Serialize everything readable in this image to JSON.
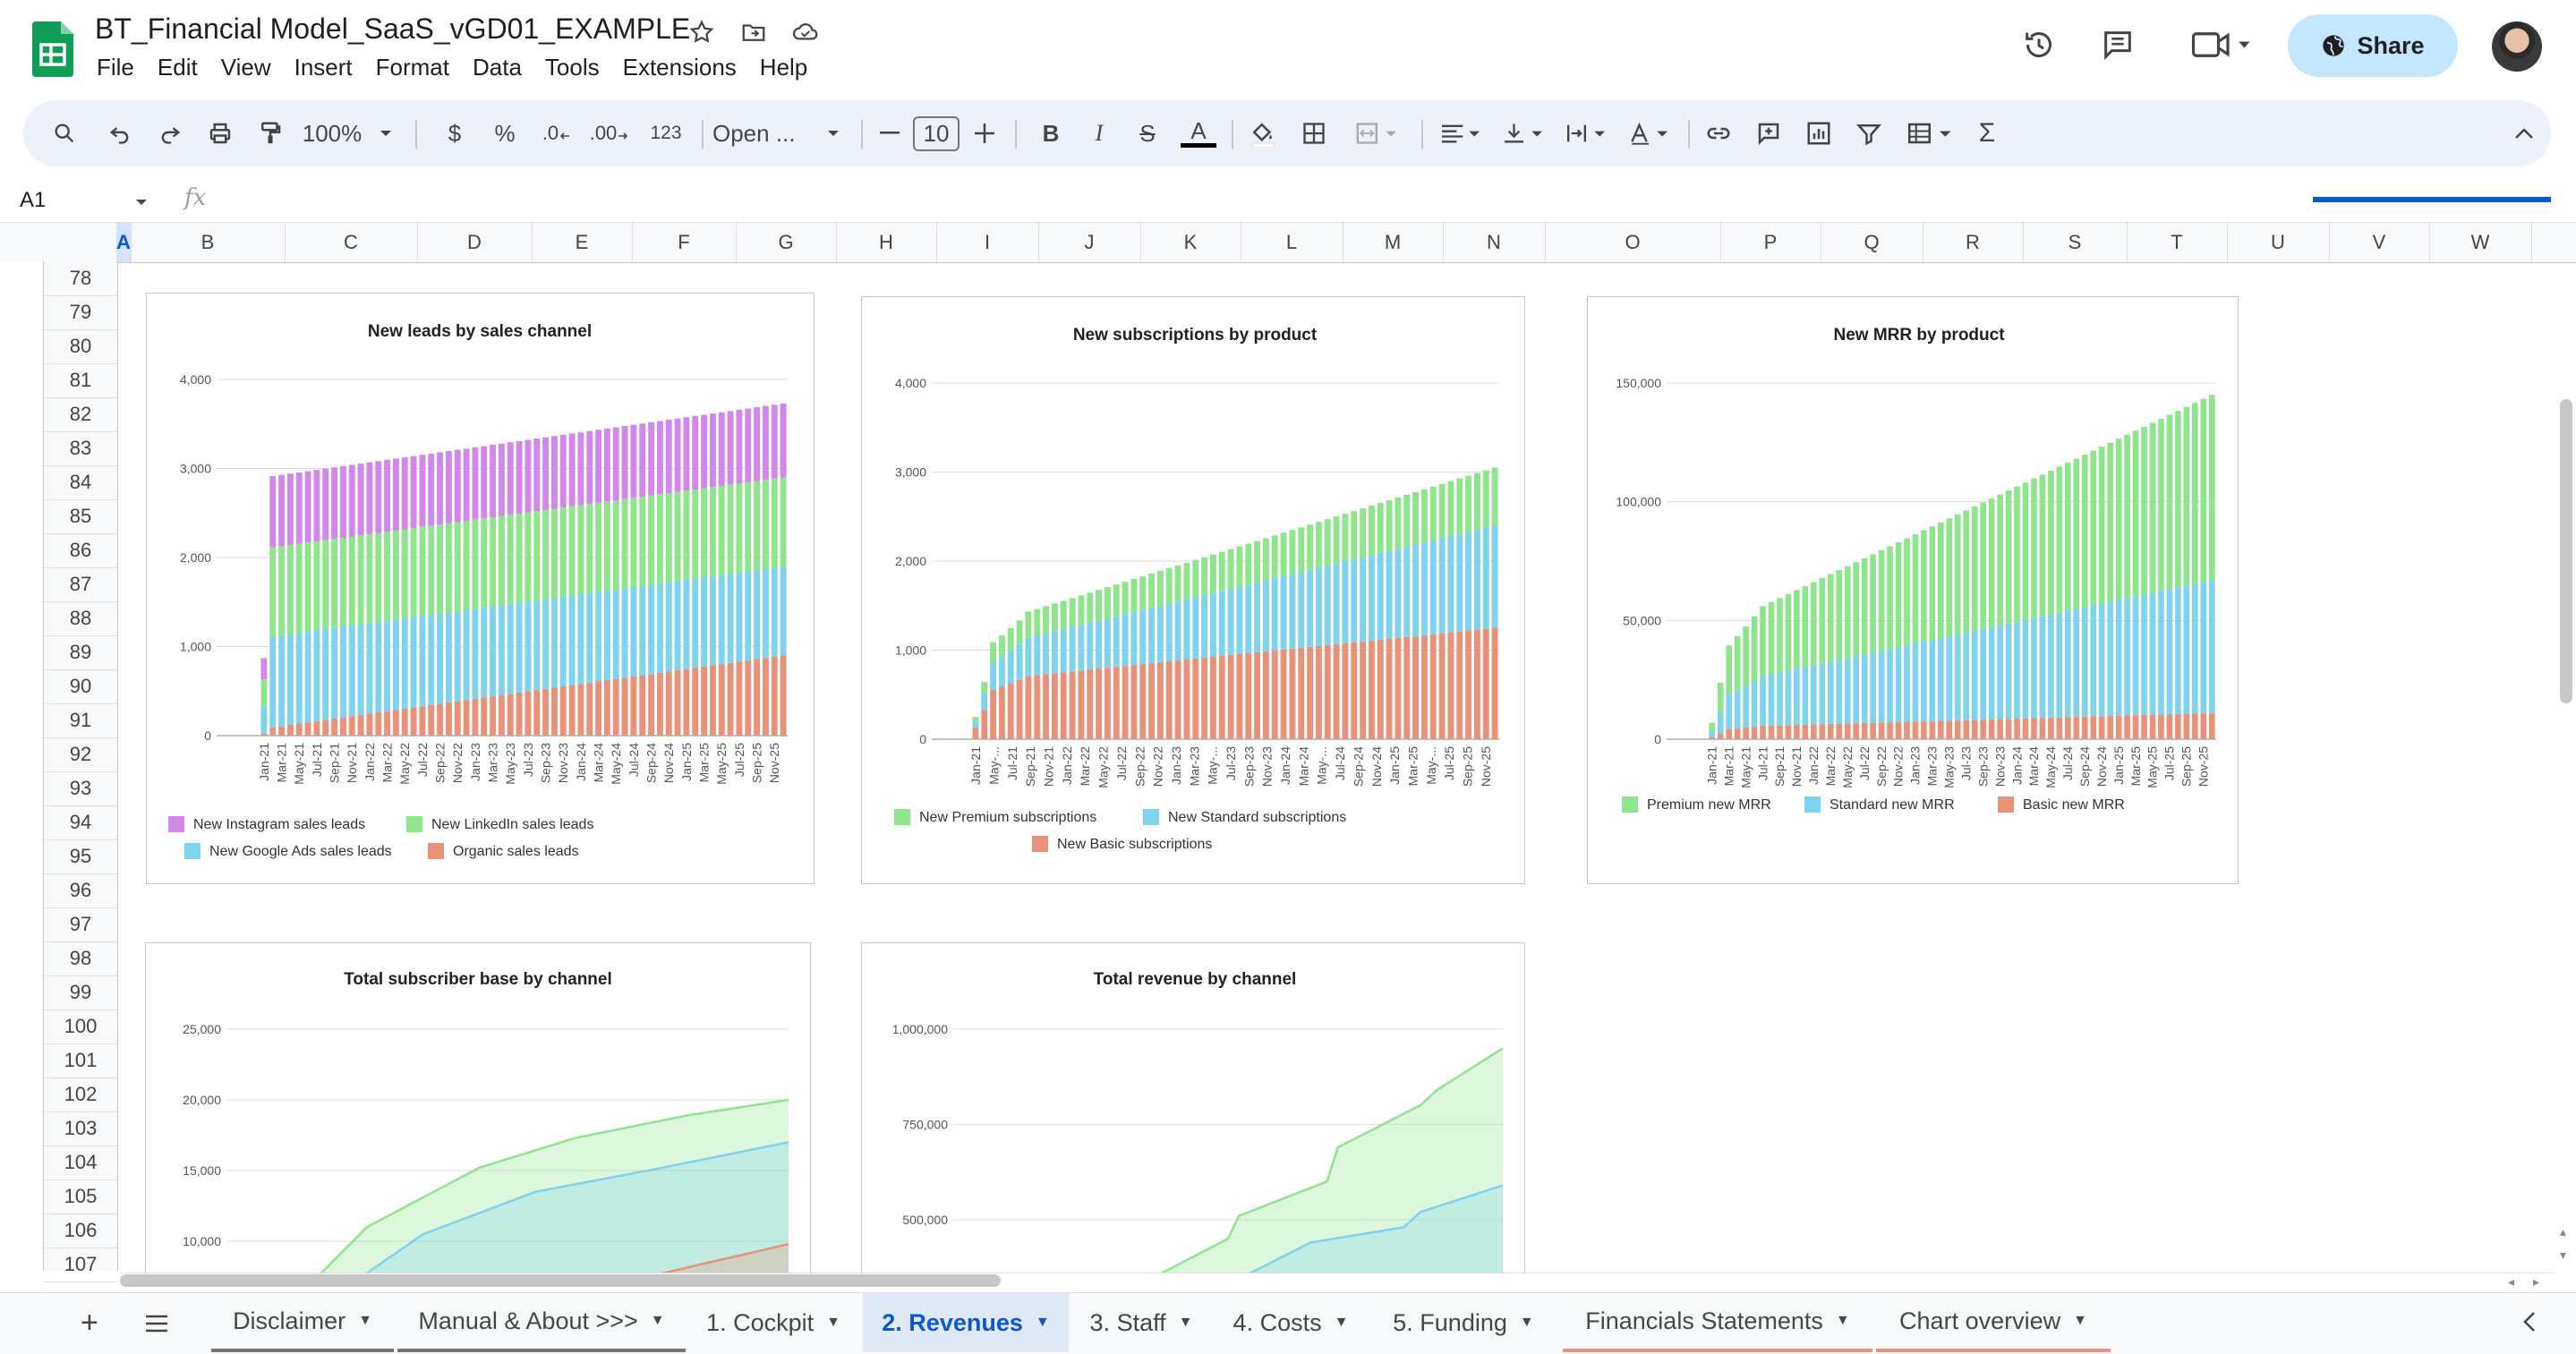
{
  "app": {
    "doc_title": "BT_Financial Model_SaaS_vGD01_EXAMPLE",
    "menu": [
      "File",
      "Edit",
      "View",
      "Insert",
      "Format",
      "Data",
      "Tools",
      "Extensions",
      "Help"
    ],
    "share_label": "Share"
  },
  "toolbar": {
    "zoom": "100%",
    "currency": "$",
    "percent": "%",
    "dec_dec": ".0",
    "inc_dec": ".00",
    "number_format": "123",
    "font": "Open ...",
    "font_size": "10",
    "bold": "B",
    "italic": "I",
    "strike": "S",
    "text_color": "A",
    "sum": "Σ"
  },
  "formula_bar": {
    "cell_ref": "A1",
    "fx": "fx"
  },
  "columns": [
    "A",
    "B",
    "C",
    "D",
    "E",
    "F",
    "G",
    "H",
    "I",
    "J",
    "K",
    "L",
    "M",
    "N",
    "O",
    "P",
    "Q",
    "R",
    "S",
    "T",
    "U",
    "V",
    "W"
  ],
  "rows": [
    "78",
    "79",
    "80",
    "81",
    "82",
    "83",
    "84",
    "85",
    "86",
    "87",
    "88",
    "89",
    "90",
    "91",
    "92",
    "93",
    "94",
    "95",
    "96",
    "97",
    "98",
    "99",
    "100",
    "101",
    "102",
    "103",
    "104",
    "105",
    "106",
    "107"
  ],
  "chart_data": [
    {
      "type": "bar",
      "stacked": true,
      "title": "New leads by sales channel",
      "x_labels": [
        "Jan-21",
        "Mar-21",
        "May-21",
        "Jul-21",
        "Sep-21",
        "Nov-21",
        "Jan-22",
        "Mar-22",
        "May-22",
        "Jul-22",
        "Sep-22",
        "Nov-22",
        "Jan-23",
        "Mar-23",
        "May-23",
        "Jul-23",
        "Sep-23",
        "Nov-23",
        "Jan-24",
        "Mar-24",
        "May-24",
        "Jul-24",
        "Sep-24",
        "Nov-24",
        "Jan-25",
        "Mar-25",
        "May-25",
        "Jul-25",
        "Sep-25",
        "Nov-25"
      ],
      "ylim": [
        0,
        4000
      ],
      "yticks": [
        "0",
        "1,000",
        "2,000",
        "3,000",
        "4,000"
      ],
      "series": [
        {
          "name": "Organic sales leads",
          "color": "#e8927a",
          "start": 80,
          "end": 900
        },
        {
          "name": "New Google Ads sales leads",
          "color": "#7fd3ee",
          "start": 1020,
          "end": 1000
        },
        {
          "name": "New LinkedIn sales leads",
          "color": "#8fe58c",
          "start": 1000,
          "end": 1000
        },
        {
          "name": "New Instagram sales leads",
          "color": "#d487ea",
          "start": 800,
          "end": 830
        }
      ],
      "legend": [
        "New Instagram sales leads",
        "New LinkedIn sales leads",
        "New Google Ads sales leads",
        "Organic sales leads"
      ]
    },
    {
      "type": "bar",
      "stacked": true,
      "title": "New subscriptions by product",
      "x_labels": [
        "Jan-21",
        "May-...",
        "Jul-21",
        "Sep-21",
        "Nov-21",
        "Jan-22",
        "Mar-22",
        "May-22",
        "Jul-22",
        "Sep-22",
        "Nov-22",
        "Jan-23",
        "Mar-23",
        "May-...",
        "Jul-23",
        "Sep-23",
        "Nov-23",
        "Jan-24",
        "Mar-24",
        "May-...",
        "Jul-24",
        "Sep-24",
        "Nov-24",
        "Jan-25",
        "Mar-25",
        "May-...",
        "Jul-25",
        "Sep-25",
        "Nov-25"
      ],
      "ylim": [
        0,
        4000
      ],
      "yticks": [
        "0",
        "1,000",
        "2,000",
        "3,000",
        "4,000"
      ],
      "series": [
        {
          "name": "New Basic subscriptions",
          "color": "#e8927a",
          "start": 650,
          "end": 1250
        },
        {
          "name": "New Standard subscriptions",
          "color": "#7fd3ee",
          "start": 350,
          "end": 1150
        },
        {
          "name": "New Premium subscriptions",
          "color": "#8fe58c",
          "start": 250,
          "end": 650
        }
      ],
      "legend": [
        "New Premium subscriptions",
        "New Standard subscriptions",
        "New Basic subscriptions"
      ]
    },
    {
      "type": "bar",
      "stacked": true,
      "title": "New MRR by product",
      "x_labels": [
        "Jan-21",
        "Mar-21",
        "May-21",
        "Jul-21",
        "Sep-21",
        "Nov-21",
        "Jan-22",
        "Mar-22",
        "May-22",
        "Jul-22",
        "Sep-22",
        "Nov-22",
        "Jan-23",
        "Mar-23",
        "May-23",
        "Jul-23",
        "Sep-23",
        "Nov-23",
        "Jan-24",
        "Mar-24",
        "May-24",
        "Jul-24",
        "Sep-24",
        "Nov-24",
        "Jan-25",
        "Mar-25",
        "May-25",
        "Jul-25",
        "Sep-25",
        "Nov-25"
      ],
      "ylim": [
        0,
        150000
      ],
      "yticks": [
        "0",
        "50,000",
        "100,000",
        "150,000"
      ],
      "series": [
        {
          "name": "Basic new MRR",
          "color": "#e8927a",
          "start": 5000,
          "end": 11000
        },
        {
          "name": "Standard new MRR",
          "color": "#7fd3ee",
          "start": 17000,
          "end": 56000
        },
        {
          "name": "Premium new MRR",
          "color": "#8fe58c",
          "start": 24000,
          "end": 78000
        }
      ],
      "legend": [
        "Premium new MRR",
        "Standard new MRR",
        "Basic new MRR"
      ]
    },
    {
      "type": "area",
      "title": "Total subscriber base by channel",
      "yticks": [
        "10,000",
        "15,000",
        "20,000",
        "25,000"
      ],
      "ylim": [
        5000,
        25000
      ],
      "series": [
        {
          "name": "",
          "color": "#e8927a",
          "x": [
            0.3,
            0.55,
            0.75,
            1.0
          ],
          "y": [
            5000,
            6200,
            7500,
            9800
          ]
        },
        {
          "name": "",
          "color": "#7fd3ee",
          "x": [
            0.15,
            0.35,
            0.55,
            0.75,
            1.0
          ],
          "y": [
            5000,
            10500,
            13500,
            15000,
            17000
          ]
        },
        {
          "name": "",
          "color": "#8fe58c",
          "x": [
            0.1,
            0.25,
            0.45,
            0.62,
            0.82,
            1.0
          ],
          "y": [
            5000,
            11000,
            15200,
            17300,
            18900,
            20000
          ]
        }
      ]
    },
    {
      "type": "area",
      "title": "Total revenue by channel",
      "yticks": [
        "500,000",
        "750,000",
        "1,000,000"
      ],
      "ylim": [
        300000,
        1000000
      ],
      "series": [
        {
          "name": "",
          "color": "#7fd3ee",
          "x": [
            0.46,
            0.5,
            0.65,
            0.82,
            0.85,
            1.0
          ],
          "y": [
            300000,
            330000,
            440000,
            480000,
            520000,
            590000
          ]
        },
        {
          "name": "",
          "color": "#8fe58c",
          "x": [
            0.3,
            0.5,
            0.52,
            0.68,
            0.7,
            0.85,
            0.88,
            1.0
          ],
          "y": [
            300000,
            450000,
            510000,
            600000,
            690000,
            800000,
            840000,
            950000
          ]
        }
      ]
    }
  ],
  "sheet_tabs": [
    {
      "label": "Disclaimer"
    },
    {
      "label": "Manual & About >>>"
    },
    {
      "label": "1. Cockpit"
    },
    {
      "label": "2. Revenues"
    },
    {
      "label": "3. Staff"
    },
    {
      "label": "4. Costs"
    },
    {
      "label": "5. Funding"
    },
    {
      "label": "Financials Statements"
    },
    {
      "label": "Chart overview"
    }
  ],
  "active_tab": "2. Revenues",
  "colors": {
    "accent": "#0b57d0",
    "active_tab_bg": "#e1e9f7",
    "share_bg": "#c2e7ff"
  }
}
